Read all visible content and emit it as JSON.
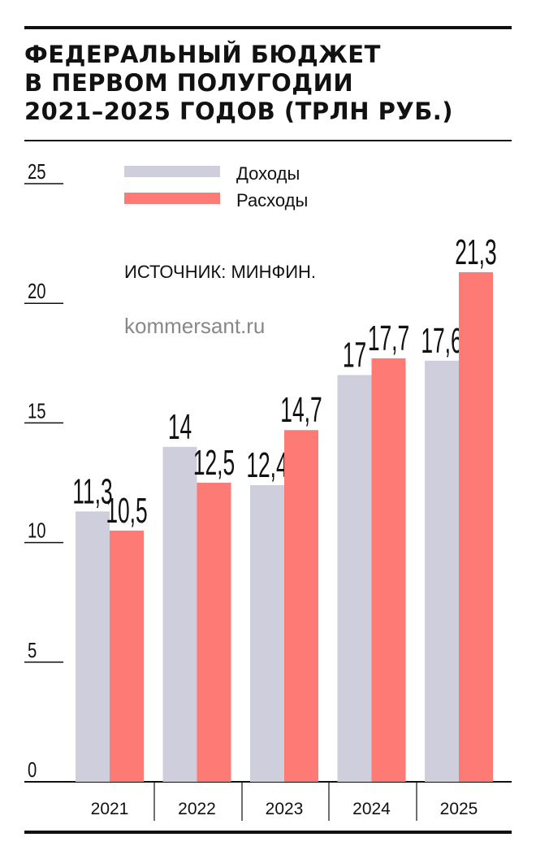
{
  "title_lines": [
    "ФЕДЕРАЛЬНЫЙ БЮДЖЕТ",
    "В ПЕРВОМ ПОЛУГОДИИ",
    "2021–2025 ГОДОВ (ТРЛН РУБ.)"
  ],
  "source": "ИСТОЧНИК: МИНФИН.",
  "site": "kommersant.ru",
  "colors": {
    "income": "#cfcedc",
    "expense": "#fd7b74",
    "ink": "#111111"
  },
  "chart_data": {
    "type": "bar",
    "title": "ФЕДЕРАЛЬНЫЙ БЮДЖЕТ В ПЕРВОМ ПОЛУГОДИИ 2021–2025 ГОДОВ (ТРЛН РУБ.)",
    "categories": [
      "2021",
      "2022",
      "2023",
      "2024",
      "2025"
    ],
    "series": [
      {
        "name": "Доходы",
        "values": [
          11.3,
          14,
          12.4,
          17,
          17.6
        ],
        "labels": [
          "11,3",
          "14",
          "12,4",
          "17",
          "17,6"
        ],
        "color": "#cfcedc"
      },
      {
        "name": "Расходы",
        "values": [
          10.5,
          12.5,
          14.7,
          17.7,
          21.3
        ],
        "labels": [
          "10,5",
          "12,5",
          "14,7",
          "17,7",
          "21,3"
        ],
        "color": "#fd7b74"
      }
    ],
    "ylim": [
      0,
      25
    ],
    "yticks": [
      0,
      5,
      10,
      15,
      20,
      25
    ],
    "xlabel": "",
    "ylabel": "",
    "legend": "top-left",
    "grid": false
  }
}
